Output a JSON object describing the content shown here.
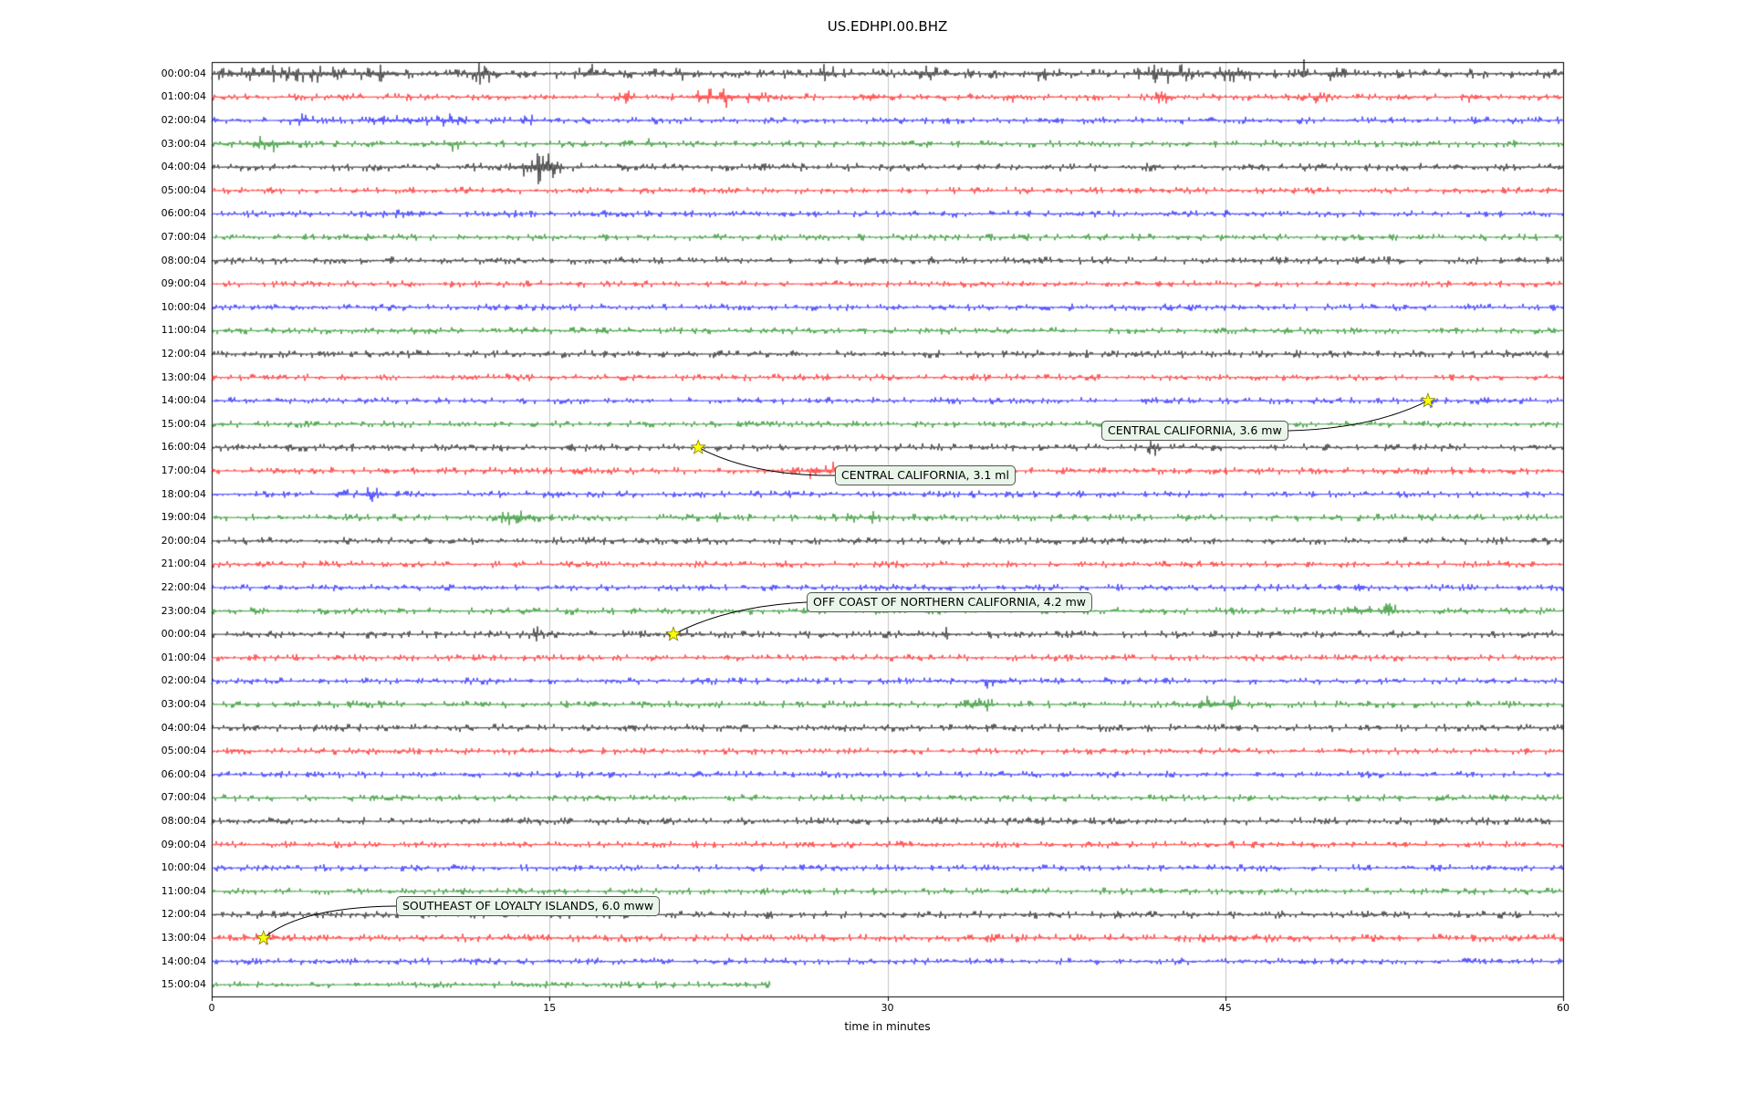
{
  "figure": {
    "title": "US.EDHPI.00.BHZ"
  },
  "chart_data": {
    "type": "line",
    "subtype": "seismogram-dayplot",
    "title": "US.EDHPI.00.BHZ",
    "xlabel": "time in minutes",
    "x_range": [
      0,
      60
    ],
    "x_ticks": [
      "0",
      "15",
      "30",
      "45",
      "60"
    ],
    "grid": "vertical-only",
    "trace_colors": [
      "#000000",
      "#ff0000",
      "#0000ff",
      "#008000"
    ],
    "event_marker": {
      "shape": "star",
      "color": "#ffff00",
      "edge": "#808000"
    },
    "rows": [
      {
        "label": "00:00:04",
        "color": 0,
        "coverage": [
          0,
          60
        ],
        "base_amp": 1.3,
        "bursts": [
          [
            2.2,
            1.5,
            1.2
          ],
          [
            4.8,
            1.2,
            1.0
          ],
          [
            7.5,
            0.8,
            1.2
          ],
          [
            12,
            0.5,
            1.5
          ],
          [
            16.8,
            0.4,
            1.5
          ],
          [
            21,
            0.3,
            1.2
          ],
          [
            27.2,
            0.4,
            1.5
          ],
          [
            31.8,
            0.4,
            1.8
          ],
          [
            36.8,
            0.3,
            1.5
          ],
          [
            42.5,
            1.2,
            1.5
          ],
          [
            45.5,
            0.8,
            1.8
          ],
          [
            48.5,
            0.15,
            4.5
          ],
          [
            50,
            0.5,
            1.5
          ]
        ]
      },
      {
        "label": "01:00:04",
        "color": 1,
        "coverage": [
          0,
          60
        ],
        "base_amp": 1.0,
        "bursts": [
          [
            18.5,
            0.3,
            1.2
          ],
          [
            21.9,
            0.35,
            2.2
          ],
          [
            22.9,
            0.5,
            2.0
          ],
          [
            24.2,
            0.4,
            1.5
          ],
          [
            29.3,
            0.25,
            2.0
          ],
          [
            35.5,
            0.3,
            1.0
          ],
          [
            42.3,
            0.3,
            1.4
          ],
          [
            49.2,
            0.3,
            1.0
          ],
          [
            56,
            0.3,
            0.8
          ]
        ]
      },
      {
        "label": "02:00:04",
        "color": 2,
        "coverage": [
          0,
          60
        ],
        "base_amp": 1.0,
        "bursts": [
          [
            4,
            0.6,
            0.8
          ],
          [
            8.2,
            1.2,
            0.8
          ],
          [
            10.6,
            0.6,
            1.0
          ],
          [
            14,
            0.4,
            0.8
          ]
        ]
      },
      {
        "label": "03:00:04",
        "color": 3,
        "coverage": [
          0,
          60
        ],
        "base_amp": 1.0,
        "bursts": [
          [
            2.6,
            0.8,
            1.8
          ],
          [
            10.8,
            0.3,
            1.4
          ],
          [
            19.5,
            0.4,
            0.7
          ]
        ]
      },
      {
        "label": "04:00:04",
        "color": 0,
        "coverage": [
          0,
          60
        ],
        "base_amp": 1.1,
        "bursts": [
          [
            13.9,
            0.3,
            2.0
          ],
          [
            14.6,
            0.35,
            4.5
          ],
          [
            15.2,
            0.25,
            3.5
          ]
        ]
      },
      {
        "label": "05:00:04",
        "color": 1,
        "coverage": [
          0,
          60
        ],
        "base_amp": 0.95,
        "bursts": []
      },
      {
        "label": "06:00:04",
        "color": 2,
        "coverage": [
          0,
          60
        ],
        "base_amp": 0.95,
        "bursts": [
          [
            8.5,
            1.5,
            0.5
          ]
        ]
      },
      {
        "label": "07:00:04",
        "color": 3,
        "coverage": [
          0,
          60
        ],
        "base_amp": 0.95,
        "bursts": []
      },
      {
        "label": "08:00:04",
        "color": 0,
        "coverage": [
          0,
          60
        ],
        "base_amp": 1.05,
        "bursts": []
      },
      {
        "label": "09:00:04",
        "color": 1,
        "coverage": [
          0,
          60
        ],
        "base_amp": 0.95,
        "bursts": []
      },
      {
        "label": "10:00:04",
        "color": 2,
        "coverage": [
          0,
          60
        ],
        "base_amp": 0.95,
        "bursts": []
      },
      {
        "label": "11:00:04",
        "color": 3,
        "coverage": [
          0,
          60
        ],
        "base_amp": 0.95,
        "bursts": []
      },
      {
        "label": "12:00:04",
        "color": 0,
        "coverage": [
          0,
          60
        ],
        "base_amp": 1.05,
        "bursts": [
          [
            9.5,
            0.5,
            0.5
          ],
          [
            21,
            0.4,
            0.5
          ]
        ]
      },
      {
        "label": "13:00:04",
        "color": 1,
        "coverage": [
          0,
          60
        ],
        "base_amp": 0.95,
        "bursts": []
      },
      {
        "label": "14:00:04",
        "color": 2,
        "coverage": [
          0,
          60
        ],
        "base_amp": 0.95,
        "bursts": [
          [
            54.2,
            0.2,
            1.0
          ],
          [
            56.6,
            0.25,
            1.6
          ]
        ]
      },
      {
        "label": "15:00:04",
        "color": 3,
        "coverage": [
          0,
          60
        ],
        "base_amp": 0.95,
        "bursts": []
      },
      {
        "label": "16:00:04",
        "color": 0,
        "coverage": [
          0,
          60
        ],
        "base_amp": 1.05,
        "bursts": [
          [
            41.8,
            0.2,
            1.8
          ]
        ]
      },
      {
        "label": "17:00:04",
        "color": 1,
        "coverage": [
          0,
          60
        ],
        "base_amp": 1.0,
        "bursts": [
          [
            26.8,
            0.35,
            2.6
          ],
          [
            27.6,
            0.3,
            1.6
          ]
        ]
      },
      {
        "label": "18:00:04",
        "color": 2,
        "coverage": [
          0,
          60
        ],
        "base_amp": 0.95,
        "bursts": [
          [
            5.8,
            0.3,
            1.0
          ],
          [
            7.1,
            0.4,
            1.3
          ]
        ]
      },
      {
        "label": "19:00:04",
        "color": 3,
        "coverage": [
          0,
          60
        ],
        "base_amp": 1.0,
        "bursts": [
          [
            13.6,
            0.8,
            1.5
          ],
          [
            22.4,
            0.2,
            1.3
          ],
          [
            28.4,
            0.25,
            1.2
          ],
          [
            29.3,
            0.2,
            1.2
          ]
        ]
      },
      {
        "label": "20:00:04",
        "color": 0,
        "coverage": [
          0,
          60
        ],
        "base_amp": 1.05,
        "bursts": []
      },
      {
        "label": "21:00:04",
        "color": 1,
        "coverage": [
          0,
          60
        ],
        "base_amp": 0.95,
        "bursts": []
      },
      {
        "label": "22:00:04",
        "color": 2,
        "coverage": [
          0,
          60
        ],
        "base_amp": 0.95,
        "bursts": []
      },
      {
        "label": "23:00:04",
        "color": 3,
        "coverage": [
          0,
          60
        ],
        "base_amp": 1.0,
        "bursts": [
          [
            50.9,
            0.5,
            1.5
          ],
          [
            52.2,
            0.4,
            1.4
          ]
        ]
      },
      {
        "label": "00:00:04",
        "color": 0,
        "coverage": [
          0,
          60
        ],
        "base_amp": 1.05,
        "bursts": [
          [
            14.4,
            0.2,
            1.5
          ],
          [
            20.8,
            0.3,
            1.2
          ],
          [
            32.6,
            0.2,
            1.5
          ]
        ]
      },
      {
        "label": "01:00:04",
        "color": 1,
        "coverage": [
          0,
          60
        ],
        "base_amp": 0.95,
        "bursts": []
      },
      {
        "label": "02:00:04",
        "color": 2,
        "coverage": [
          0,
          60
        ],
        "base_amp": 0.95,
        "bursts": [
          [
            34.6,
            0.4,
            1.2
          ]
        ]
      },
      {
        "label": "03:00:04",
        "color": 3,
        "coverage": [
          0,
          60
        ],
        "base_amp": 1.0,
        "bursts": [
          [
            33.9,
            0.8,
            1.2
          ],
          [
            44.4,
            0.6,
            1.5
          ],
          [
            45.3,
            0.18,
            3.2
          ]
        ]
      },
      {
        "label": "04:00:04",
        "color": 0,
        "coverage": [
          0,
          60
        ],
        "base_amp": 1.05,
        "bursts": []
      },
      {
        "label": "05:00:04",
        "color": 1,
        "coverage": [
          0,
          60
        ],
        "base_amp": 0.95,
        "bursts": []
      },
      {
        "label": "06:00:04",
        "color": 2,
        "coverage": [
          0,
          60
        ],
        "base_amp": 0.95,
        "bursts": []
      },
      {
        "label": "07:00:04",
        "color": 3,
        "coverage": [
          0,
          60
        ],
        "base_amp": 0.95,
        "bursts": []
      },
      {
        "label": "08:00:04",
        "color": 0,
        "coverage": [
          0,
          60
        ],
        "base_amp": 1.05,
        "bursts": []
      },
      {
        "label": "09:00:04",
        "color": 1,
        "coverage": [
          0,
          60
        ],
        "base_amp": 0.95,
        "bursts": []
      },
      {
        "label": "10:00:04",
        "color": 2,
        "coverage": [
          0,
          60
        ],
        "base_amp": 0.95,
        "bursts": []
      },
      {
        "label": "11:00:04",
        "color": 3,
        "coverage": [
          0,
          60
        ],
        "base_amp": 0.95,
        "bursts": []
      },
      {
        "label": "12:00:04",
        "color": 0,
        "coverage": [
          0,
          60
        ],
        "base_amp": 1.05,
        "bursts": []
      },
      {
        "label": "13:00:04",
        "color": 1,
        "coverage": [
          0,
          60
        ],
        "base_amp": 1.1,
        "bursts": [
          [
            2.4,
            0.3,
            0.8
          ]
        ]
      },
      {
        "label": "14:00:04",
        "color": 2,
        "coverage": [
          0,
          60
        ],
        "base_amp": 0.95,
        "bursts": []
      },
      {
        "label": "15:00:04",
        "color": 3,
        "coverage": [
          0,
          24.8
        ],
        "base_amp": 0.95,
        "bursts": []
      }
    ],
    "events": [
      {
        "label": "CENTRAL CALIFORNIA, 3.6 mw",
        "row": 14,
        "minute": 54.0
      },
      {
        "label": "CENTRAL CALIFORNIA, 3.1 ml",
        "row": 16,
        "minute": 21.6
      },
      {
        "label": "OFF COAST OF NORTHERN CALIFORNIA, 4.2 mw",
        "row": 24,
        "minute": 20.5
      },
      {
        "label": "SOUTHEAST OF LOYALTY ISLANDS, 6.0 mww",
        "row": 37,
        "minute": 2.3
      }
    ]
  }
}
